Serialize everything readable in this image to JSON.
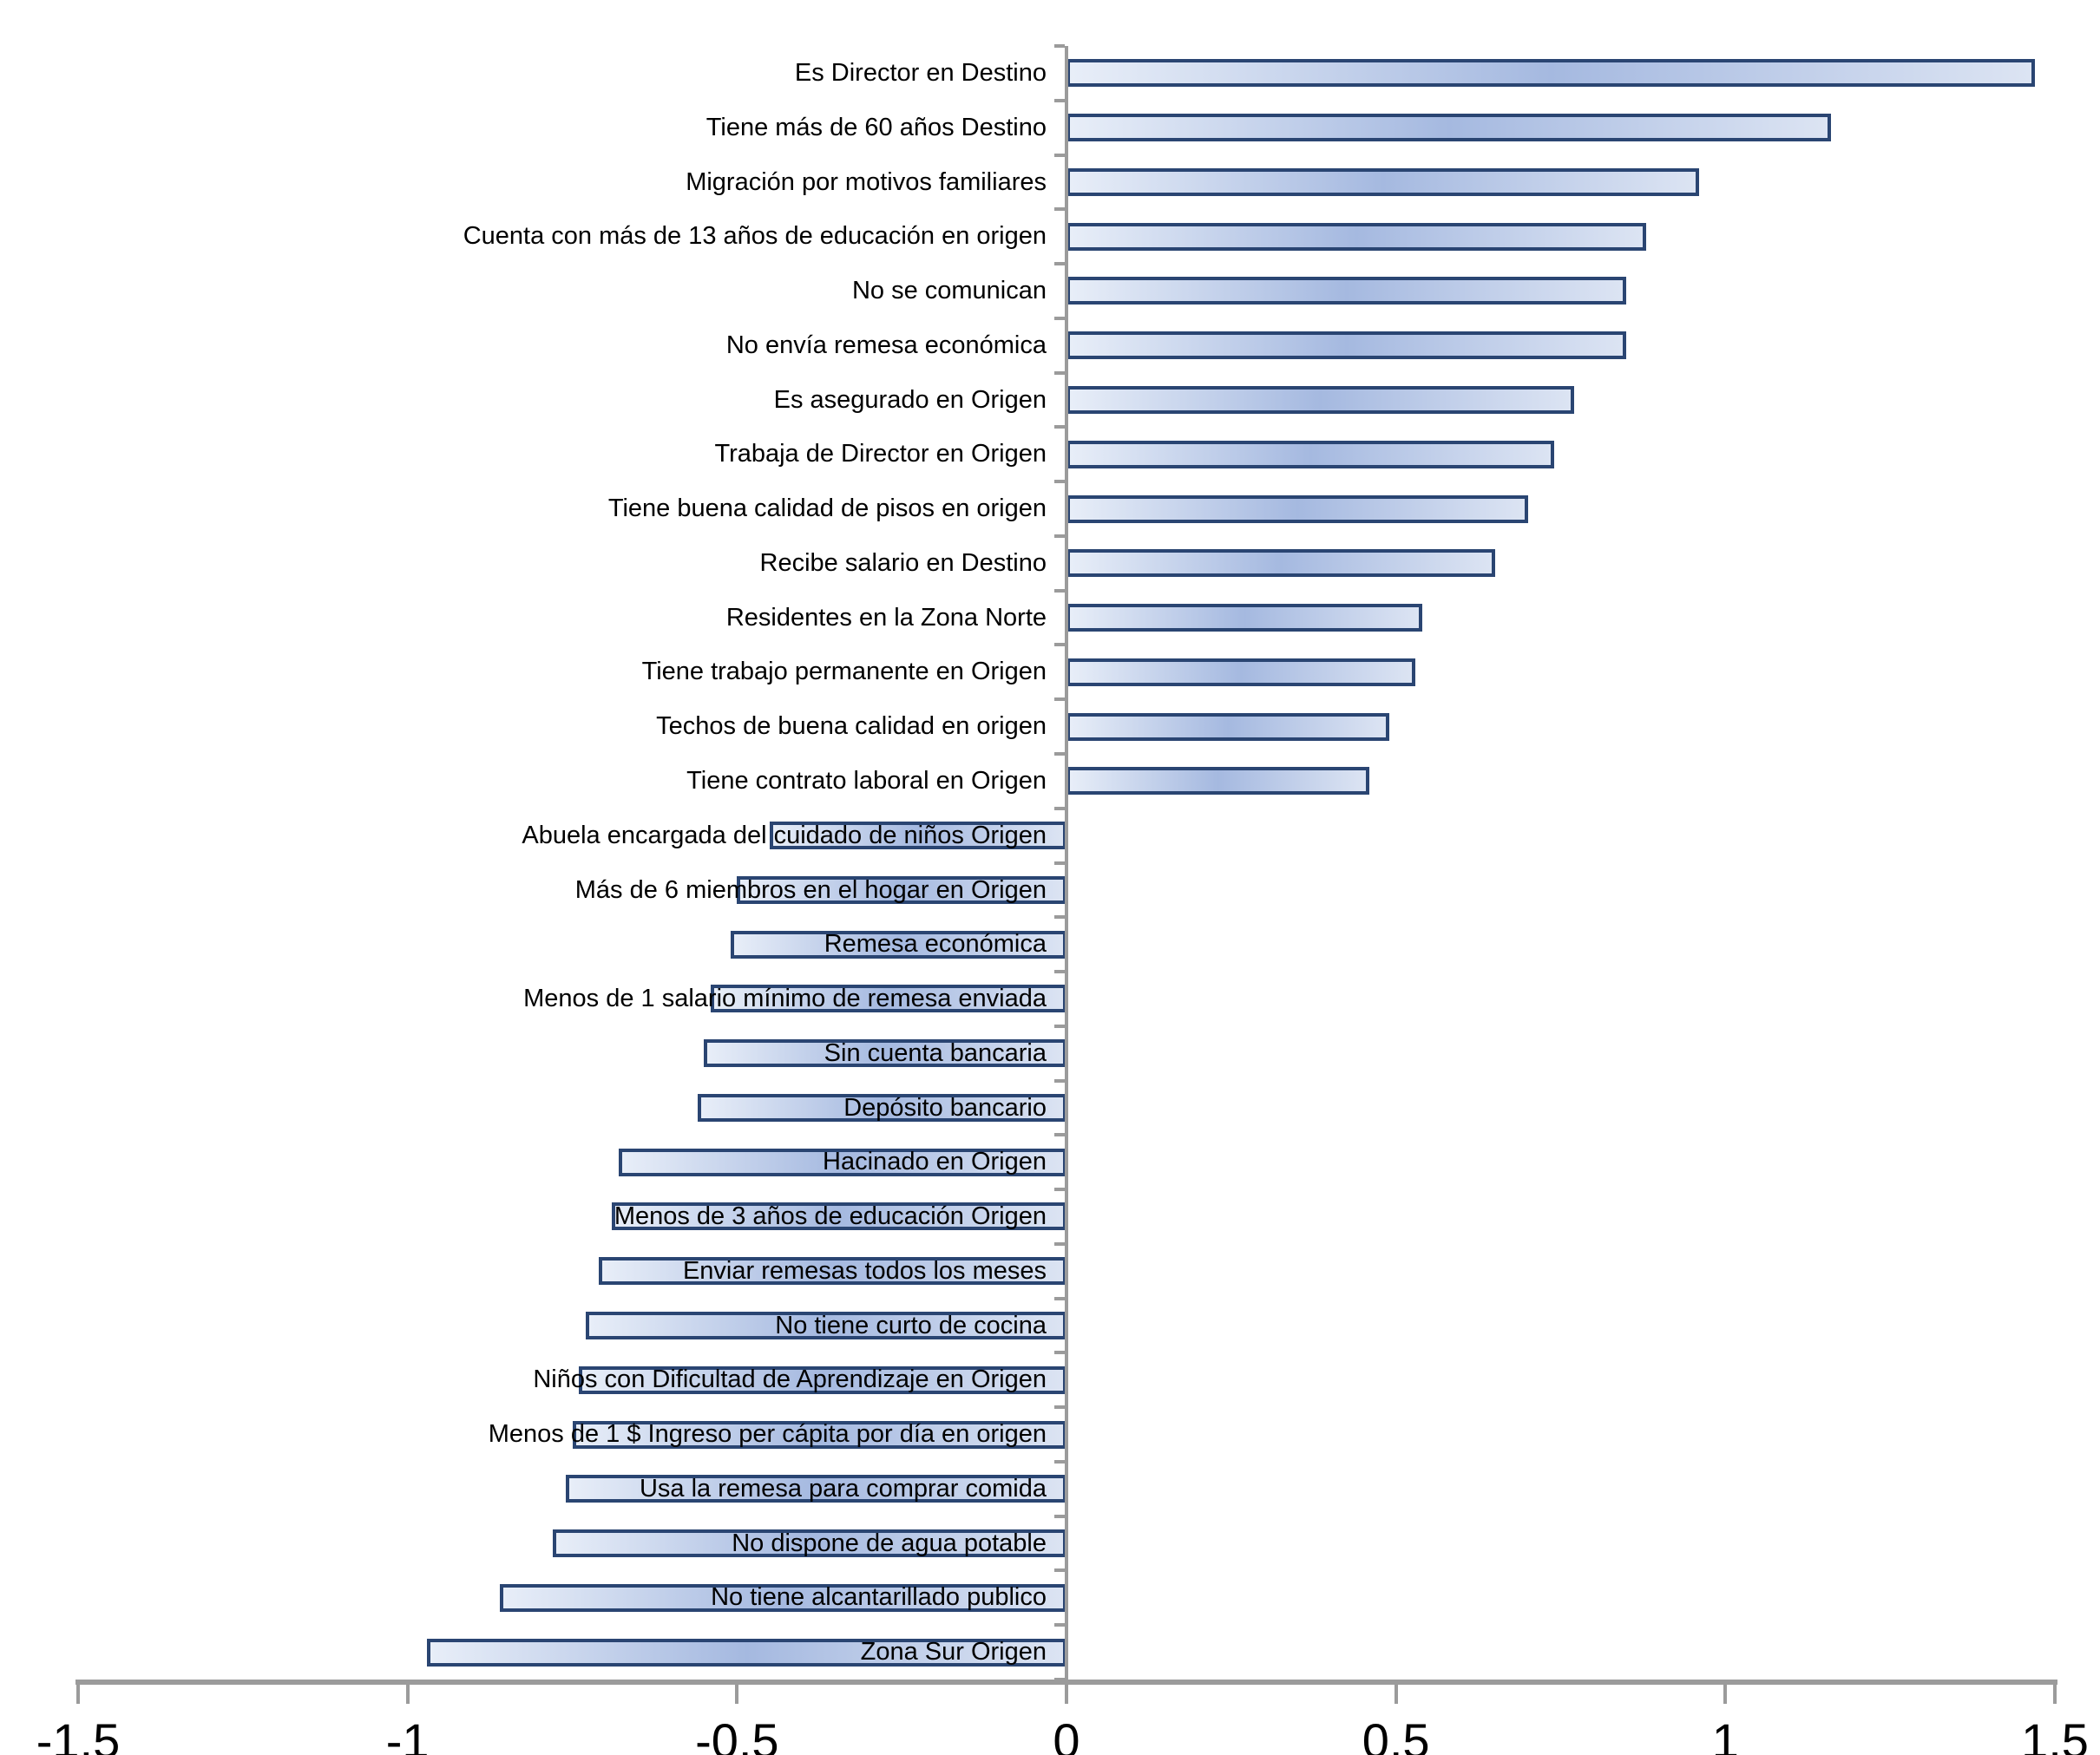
{
  "chart_data": {
    "type": "bar",
    "orientation": "horizontal",
    "title": "",
    "xlabel": "",
    "ylabel": "",
    "xlim": [
      -1.5,
      1.5
    ],
    "grid": false,
    "legend": false,
    "x_ticks": [
      -1.5,
      -1,
      -0.5,
      0,
      0.5,
      1,
      1.5
    ],
    "x_tick_labels": [
      "-1,5",
      "-1",
      "-0,5",
      "0",
      "0,5",
      "1",
      "1,5"
    ],
    "categories": [
      "Es Director en Destino",
      "Tiene más de 60 años Destino",
      "Migración por motivos familiares",
      "Cuenta con más de 13 años de educación en origen",
      "No se comunican",
      "No envía remesa económica",
      "Es asegurado en Origen",
      "Trabaja de Director en Origen",
      "Tiene buena calidad de pisos en origen",
      "Recibe salario en Destino",
      "Residentes en la Zona Norte",
      "Tiene trabajo permanente en Origen",
      "Techos de buena calidad en origen",
      "Tiene contrato laboral en Origen",
      "Abuela encargada del cuidado de niños Origen",
      "Más de 6 miembros en el hogar en Origen",
      "Remesa económica",
      "Menos de 1 salario mínimo de remesa enviada",
      "Sin cuenta bancaria",
      "Depósito bancario",
      "Hacinado en Origen",
      "Menos de 3 años de educación Origen",
      "Enviar remesas todos los meses",
      "No tiene curto de cocina",
      "Niños con Dificultad de Aprendizaje en Origen",
      "Menos de 1 $ Ingreso per cápita por día en origen",
      "Usa la remesa para comprar comida",
      "No dispone de agua potable",
      "No tiene alcantarillado publico",
      "Zona Sur Origen"
    ],
    "values": [
      1.47,
      1.16,
      0.96,
      0.88,
      0.85,
      0.85,
      0.77,
      0.74,
      0.7,
      0.65,
      0.54,
      0.53,
      0.49,
      0.46,
      -0.45,
      -0.5,
      -0.51,
      -0.54,
      -0.55,
      -0.56,
      -0.68,
      -0.69,
      -0.71,
      -0.73,
      -0.74,
      -0.75,
      -0.76,
      -0.78,
      -0.86,
      -0.97
    ],
    "colors": {
      "bar_border": "#2a4572",
      "bar_fill_light": "#e8eef8",
      "bar_fill_dark": "#a5b9e0",
      "bar_fill_end": "#dce4f3",
      "axis": "#9b9b9b",
      "label": "#000000",
      "background": "#ffffff"
    }
  }
}
